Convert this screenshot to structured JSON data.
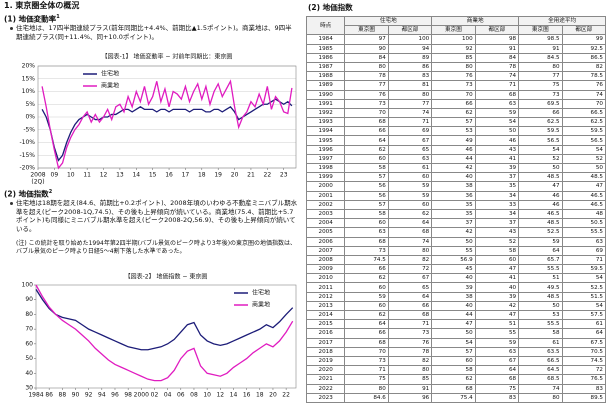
{
  "header": {
    "title": "1. 東京圏全体の概況"
  },
  "section1": {
    "heading": "(1) 地価変動率",
    "footnote_mark": "1",
    "bullet": "住宅地は、17四半期連続プラス(前年同期比+4.4%、前期比▲1.5ポイント)。商業地は、9四半期連続プラス(同+11.4%、同+10.0ポイント)。"
  },
  "section2": {
    "heading": "(2) 地価指数",
    "footnote_mark": "2",
    "bullet": "住宅地は18期を超え(84.6、前期比+0.2ポイント)、2008年頃のいわゆる不動産ミニバブル期水準を超え(ピーク2008-1Q,74.5)、その後も上昇傾向が続いている。商業地(75.4、前期比+5.7ポイント)も同様にミニバブル期水準を超え(ピーク2008-2Q,56.9)、その後も上昇傾向が続いている。",
    "note": "(注) この統計を取り始めた1994年第2四半期(バブル景気のピーク時より3年後)の東京圏の地価指数は、バブル景気のピーク時より日経5〜4割下落した水準であった。"
  },
  "chart_data": [
    {
      "type": "line",
      "caption": "【図表-1】 地価変動率 − 対前年同期比：東京圏",
      "x_note": "(2Q)",
      "x": [
        2008.25,
        2008.5,
        2008.75,
        2009,
        2009.25,
        2009.5,
        2009.75,
        2010,
        2010.25,
        2010.5,
        2010.75,
        2011,
        2011.25,
        2011.5,
        2011.75,
        2012,
        2012.25,
        2012.5,
        2012.75,
        2013,
        2013.25,
        2013.5,
        2013.75,
        2014,
        2014.25,
        2014.5,
        2014.75,
        2015,
        2015.25,
        2015.5,
        2015.75,
        2016,
        2016.25,
        2016.5,
        2016.75,
        2017,
        2017.25,
        2017.5,
        2017.75,
        2018,
        2018.25,
        2018.5,
        2018.75,
        2019,
        2019.25,
        2019.5,
        2019.75,
        2020,
        2020.25,
        2020.5,
        2020.75,
        2021,
        2021.25,
        2021.5,
        2021.75,
        2022,
        2022.25,
        2022.5,
        2022.75,
        2023,
        2023.25,
        2023.5
      ],
      "xlim": [
        2008,
        2023.75
      ],
      "xticks": [
        {
          "value": 2008,
          "label": "2008"
        },
        {
          "value": 2009,
          "label": "09"
        },
        {
          "value": 2010,
          "label": "10"
        },
        {
          "value": 2011,
          "label": "11"
        },
        {
          "value": 2012,
          "label": "12"
        },
        {
          "value": 2013,
          "label": "13"
        },
        {
          "value": 2014,
          "label": "14"
        },
        {
          "value": 2015,
          "label": "15"
        },
        {
          "value": 2016,
          "label": "16"
        },
        {
          "value": 2017,
          "label": "17"
        },
        {
          "value": 2018,
          "label": "18"
        },
        {
          "value": 2019,
          "label": "19"
        },
        {
          "value": 2020,
          "label": "20"
        },
        {
          "value": 2021,
          "label": "21"
        },
        {
          "value": 2022,
          "label": "22"
        },
        {
          "value": 2023,
          "label": "23"
        }
      ],
      "ylim": [
        -20,
        20
      ],
      "yticks": [
        {
          "value": 20,
          "label": "20%"
        },
        {
          "value": 15,
          "label": "15%"
        },
        {
          "value": 10,
          "label": "10%"
        },
        {
          "value": 5,
          "label": "5%"
        },
        {
          "value": 0,
          "label": "0%"
        },
        {
          "value": -5,
          "label": "-5%"
        },
        {
          "value": -10,
          "label": "-10%"
        },
        {
          "value": -15,
          "label": "-15%"
        },
        {
          "value": -20,
          "label": "-20%"
        }
      ],
      "grid": true,
      "legend": "upper left",
      "series": [
        {
          "name": "住宅地",
          "color": "#1c1c78",
          "values": [
            3,
            0,
            -5,
            -12,
            -17,
            -15,
            -10,
            -6,
            -3,
            -1,
            0,
            1,
            0,
            -1,
            -1,
            0,
            0,
            1,
            1,
            2,
            3,
            3,
            2,
            3,
            4,
            3,
            3,
            3,
            2,
            3,
            3,
            2,
            3,
            3,
            3,
            3,
            2,
            3,
            3,
            3,
            2,
            2,
            3,
            3,
            2,
            3,
            4,
            2,
            -1,
            0,
            1,
            2,
            3,
            4,
            5,
            5,
            6,
            7,
            6,
            5,
            6,
            4.4
          ]
        },
        {
          "name": "商業地",
          "color": "#e01cc0",
          "values": [
            12,
            4,
            -5,
            -13,
            -20,
            -18,
            -12,
            -8,
            -5,
            -3,
            0,
            2,
            -2,
            1,
            -2,
            0,
            3,
            -1,
            4,
            5,
            2,
            8,
            4,
            10,
            6,
            12,
            5,
            8,
            14,
            6,
            11,
            4,
            10,
            9,
            7,
            12,
            6,
            10,
            13,
            7,
            12,
            5,
            10,
            13,
            8,
            11,
            14,
            4,
            -4,
            0,
            2,
            6,
            4,
            9,
            5,
            12,
            3,
            8,
            6,
            2,
            1.4,
            11.4
          ]
        }
      ]
    },
    {
      "type": "line",
      "caption": "【図表-2】 地価指数 − 東京圏",
      "x": [
        1984,
        1985,
        1986,
        1987,
        1988,
        1989,
        1990,
        1991,
        1992,
        1993,
        1994,
        1995,
        1996,
        1997,
        1998,
        1999,
        2000,
        2001,
        2002,
        2003,
        2004,
        2005,
        2006,
        2007,
        2008,
        2009,
        2010,
        2011,
        2012,
        2013,
        2014,
        2015,
        2016,
        2017,
        2018,
        2019,
        2020,
        2021,
        2022,
        2023
      ],
      "xlim": [
        1984,
        2023.5
      ],
      "xticks": [
        {
          "value": 1984,
          "label": "1984"
        },
        {
          "value": 1986,
          "label": "86"
        },
        {
          "value": 1988,
          "label": "88"
        },
        {
          "value": 1990,
          "label": "90"
        },
        {
          "value": 1992,
          "label": "92"
        },
        {
          "value": 1994,
          "label": "94"
        },
        {
          "value": 1996,
          "label": "96"
        },
        {
          "value": 1998,
          "label": "98"
        },
        {
          "value": 2000,
          "label": "2000"
        },
        {
          "value": 2002,
          "label": "02"
        },
        {
          "value": 2004,
          "label": "04"
        },
        {
          "value": 2006,
          "label": "06"
        },
        {
          "value": 2008,
          "label": "08"
        },
        {
          "value": 2010,
          "label": "10"
        },
        {
          "value": 2012,
          "label": "12"
        },
        {
          "value": 2014,
          "label": "14"
        },
        {
          "value": 2016,
          "label": "16"
        },
        {
          "value": 2018,
          "label": "18"
        },
        {
          "value": 2020,
          "label": "20"
        },
        {
          "value": 2022,
          "label": "22"
        }
      ],
      "ylim": [
        30,
        100
      ],
      "yticks": [
        100,
        90,
        80,
        70,
        60,
        50,
        40,
        30
      ],
      "grid": false,
      "legend": "upper right",
      "series": [
        {
          "name": "住宅地",
          "color": "#1c1c78",
          "values": [
            97,
            90,
            84,
            80,
            78,
            77,
            76,
            73,
            70,
            68,
            66,
            64,
            62,
            60,
            58,
            57,
            56,
            56,
            57,
            58,
            60,
            63,
            68,
            73,
            74.5,
            66,
            62,
            60,
            59,
            60,
            62,
            64,
            66,
            68,
            70,
            73,
            71,
            75,
            80,
            84.6
          ]
        },
        {
          "name": "商業地",
          "color": "#e01cc0",
          "values": [
            100,
            92,
            85,
            80,
            76,
            73,
            70,
            66,
            62,
            57,
            53,
            49,
            46,
            44,
            42,
            40,
            38,
            36,
            35,
            35,
            37,
            42,
            50,
            55,
            56.9,
            45,
            40,
            39,
            38,
            40,
            44,
            47,
            50,
            54,
            57,
            60,
            58,
            62,
            68,
            75.4
          ]
        }
      ]
    }
  ],
  "table": {
    "title": "(2) 地価指数",
    "group_headers": [
      "時点",
      "住宅地",
      "商業地",
      "全用途平均"
    ],
    "sub_headers": [
      "東京圏",
      "都区部",
      "東京圏",
      "都区部",
      "東京圏",
      "都区部"
    ],
    "rows": [
      [
        "1984",
        97,
        100,
        100,
        98,
        98.5,
        99
      ],
      [
        "1985",
        90,
        94,
        92,
        91,
        91,
        92.5
      ],
      [
        "1986",
        84,
        89,
        85,
        84,
        84.5,
        86.5
      ],
      [
        "1987",
        80,
        86,
        80,
        78,
        80,
        82
      ],
      [
        "1988",
        78,
        83,
        76,
        74,
        77,
        78.5
      ],
      [
        "1989",
        77,
        81,
        73,
        71,
        75,
        76
      ],
      [
        "1990",
        76,
        80,
        70,
        68,
        73,
        74
      ],
      [
        "1991",
        73,
        77,
        66,
        63,
        69.5,
        70
      ],
      [
        "1992",
        70,
        74,
        62,
        59,
        66,
        66.5
      ],
      [
        "1993",
        68,
        71,
        57,
        54,
        62.5,
        62.5
      ],
      [
        "1994",
        66,
        69,
        53,
        50,
        59.5,
        59.5
      ],
      [
        "1995",
        64,
        67,
        49,
        46,
        56.5,
        56.5
      ],
      [
        "1996",
        62,
        65,
        46,
        43,
        54,
        54
      ],
      [
        "1997",
        60,
        63,
        44,
        41,
        52,
        52
      ],
      [
        "1998",
        58,
        61,
        42,
        39,
        50,
        50
      ],
      [
        "1999",
        57,
        60,
        40,
        37,
        48.5,
        48.5
      ],
      [
        "2000",
        56,
        59,
        38,
        35,
        47,
        47
      ],
      [
        "2001",
        56,
        59,
        36,
        34,
        46,
        46.5
      ],
      [
        "2002",
        57,
        60,
        35,
        33,
        46,
        46.5
      ],
      [
        "2003",
        58,
        62,
        35,
        34,
        46.5,
        48
      ],
      [
        "2004",
        60,
        64,
        37,
        37,
        48.5,
        50.5
      ],
      [
        "2005",
        63,
        68,
        42,
        43,
        52.5,
        55.5
      ],
      [
        "2006",
        68,
        74,
        50,
        52,
        59,
        63
      ],
      [
        "2007",
        73,
        80,
        55,
        58,
        64,
        69
      ],
      [
        "2008",
        74.5,
        82,
        56.9,
        60,
        65.7,
        71
      ],
      [
        "2009",
        66,
        72,
        45,
        47,
        55.5,
        59.5
      ],
      [
        "2010",
        62,
        67,
        40,
        41,
        51,
        54
      ],
      [
        "2011",
        60,
        65,
        39,
        40,
        49.5,
        52.5
      ],
      [
        "2012",
        59,
        64,
        38,
        39,
        48.5,
        51.5
      ],
      [
        "2013",
        60,
        66,
        40,
        42,
        50,
        54
      ],
      [
        "2014",
        62,
        68,
        44,
        47,
        53,
        57.5
      ],
      [
        "2015",
        64,
        71,
        47,
        51,
        55.5,
        61
      ],
      [
        "2016",
        66,
        73,
        50,
        55,
        58,
        64
      ],
      [
        "2017",
        68,
        76,
        54,
        59,
        61,
        67.5
      ],
      [
        "2018",
        70,
        78,
        57,
        63,
        63.5,
        70.5
      ],
      [
        "2019",
        73,
        82,
        60,
        67,
        66.5,
        74.5
      ],
      [
        "2020",
        71,
        80,
        58,
        64,
        64.5,
        72
      ],
      [
        "2021",
        75,
        85,
        62,
        68,
        68.5,
        76.5
      ],
      [
        "2022",
        80,
        91,
        68,
        75,
        74,
        83
      ],
      [
        "2023",
        84.6,
        96,
        75.4,
        83,
        80,
        89.5
      ]
    ]
  }
}
